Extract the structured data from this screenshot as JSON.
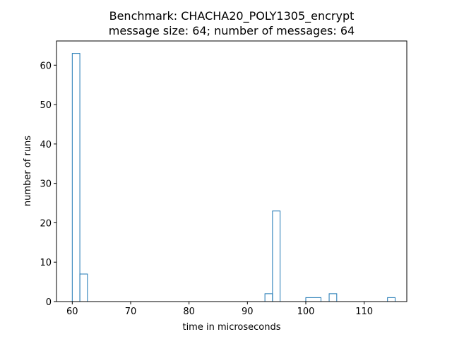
{
  "chart_data": {
    "type": "bar",
    "title": "Benchmark: CHACHA20_POLY1305_encrypt",
    "subtitle": "message size: 64; number of messages: 64",
    "xlabel": "time in microseconds",
    "ylabel": "number of runs",
    "xlim": [
      57.3,
      117.3
    ],
    "ylim": [
      0,
      66.15
    ],
    "xticks": [
      60,
      70,
      80,
      90,
      100,
      110
    ],
    "yticks": [
      0,
      10,
      20,
      30,
      40,
      50,
      60
    ],
    "grid": false,
    "histtype": "step",
    "color": "#1f77b4",
    "bins": [
      {
        "x0": 60.0,
        "x1": 61.3,
        "count": 63
      },
      {
        "x0": 61.3,
        "x1": 62.6,
        "count": 7
      },
      {
        "x0": 93.0,
        "x1": 94.3,
        "count": 2
      },
      {
        "x0": 94.3,
        "x1": 95.6,
        "count": 23
      },
      {
        "x0": 100.0,
        "x1": 102.6,
        "count": 1
      },
      {
        "x0": 104.0,
        "x1": 105.3,
        "count": 2
      },
      {
        "x0": 114.0,
        "x1": 115.3,
        "count": 1
      }
    ]
  }
}
